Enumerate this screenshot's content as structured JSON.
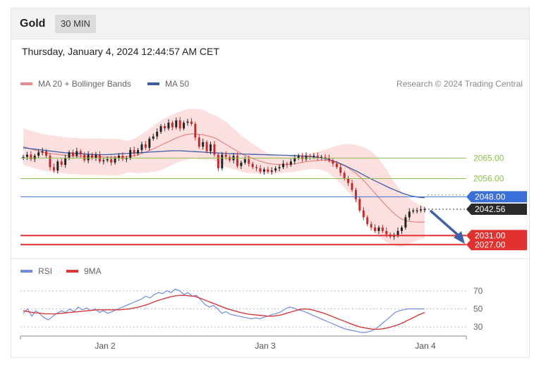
{
  "header": {
    "symbol": "Gold",
    "timeframe": "30 MIN"
  },
  "datetime": "Thursday, January 4, 2024 12:44:57 AM CET",
  "credit": "Research © 2024 Trading Central",
  "colors": {
    "bull": "#222222",
    "bear": "#c42a2a",
    "ma20": "#e88a8a",
    "ma50": "#3b5ea8",
    "band": "#fbd5d5",
    "support_green": "#8bbf4f",
    "resistance_blue": "#3b6fd8",
    "target_red": "#e03030",
    "rsi": "#6f8be0",
    "rsi_ma": "#d83a3a",
    "arrow": "#3c5fa6"
  },
  "chart_data": [
    {
      "type": "candlestick",
      "legend": [
        {
          "label": "MA 20 + Bollinger Bands",
          "color": "#e88a8a"
        },
        {
          "label": "MA 50",
          "color": "#3b5ea8"
        }
      ],
      "x_ticks": [
        "Jan 2",
        "Jan 3",
        "Jan 4"
      ],
      "ylim": [
        2024,
        2092
      ],
      "levels": [
        {
          "value": 2065.0,
          "label": "2065.00",
          "kind": "green"
        },
        {
          "value": 2056.0,
          "label": "2056.00",
          "kind": "green"
        },
        {
          "value": 2048.0,
          "label": "2048.00",
          "kind": "blue"
        },
        {
          "value": 2042.56,
          "label": "2042.56",
          "kind": "last"
        },
        {
          "value": 2031.0,
          "label": "2031.00",
          "kind": "red"
        },
        {
          "value": 2027.0,
          "label": "2027.00",
          "kind": "red"
        }
      ],
      "closes": [
        2065.5,
        2066.5,
        2064.5,
        2066.0,
        2067.5,
        2068.0,
        2066.0,
        2061.0,
        2059.5,
        2063.5,
        2062.0,
        2065.0,
        2067.5,
        2066.0,
        2068.0,
        2066.5,
        2064.0,
        2066.5,
        2065.0,
        2066.5,
        2063.5,
        2064.0,
        2064.5,
        2063.0,
        2065.0,
        2066.0,
        2064.5,
        2065.0,
        2068.5,
        2067.0,
        2068.5,
        2071.0,
        2069.5,
        2073.5,
        2074.5,
        2076.5,
        2079.0,
        2078.0,
        2080.5,
        2078.5,
        2081.5,
        2078.0,
        2080.5,
        2081.0,
        2080.0,
        2074.0,
        2070.0,
        2072.0,
        2068.0,
        2071.0,
        2066.5,
        2060.5,
        2066.5,
        2065.5,
        2064.0,
        2066.0,
        2061.5,
        2063.0,
        2064.5,
        2062.5,
        2061.0,
        2060.5,
        2059.0,
        2060.0,
        2059.0,
        2059.5,
        2060.5,
        2061.0,
        2062.5,
        2062.0,
        2063.5,
        2065.0,
        2066.0,
        2064.5,
        2066.0,
        2065.5,
        2066.0,
        2065.0,
        2065.5,
        2065.0,
        2064.0,
        2062.5,
        2061.0,
        2058.5,
        2056.0,
        2054.0,
        2051.0,
        2047.0,
        2042.0,
        2039.0,
        2036.0,
        2034.5,
        2033.0,
        2034.5,
        2033.0,
        2031.5,
        2030.5,
        2031.0,
        2033.0,
        2034.5,
        2039.0,
        2041.5,
        2042.0,
        2042.0,
        2042.5,
        2042.56
      ],
      "ma20": [
        2070,
        2069.5,
        2069,
        2068.5,
        2068,
        2067.5,
        2067.3,
        2067,
        2066.8,
        2066.6,
        2066.4,
        2066.2,
        2066,
        2065.9,
        2065.8,
        2065.7,
        2065.6,
        2065.6,
        2065.6,
        2065.6,
        2065.5,
        2065.5,
        2065.4,
        2065.4,
        2065.4,
        2065.4,
        2065.5,
        2065.6,
        2065.8,
        2066,
        2066.4,
        2067,
        2067.6,
        2068.3,
        2069,
        2069.8,
        2070.6,
        2071.4,
        2072.2,
        2073,
        2073.8,
        2074.4,
        2075,
        2075.4,
        2075.6,
        2075.6,
        2075.4,
        2075.2,
        2074.8,
        2074.4,
        2073.8,
        2073,
        2072,
        2071,
        2070,
        2069,
        2068,
        2067,
        2066.2,
        2065.4,
        2064.8,
        2064.2,
        2063.6,
        2063.1,
        2062.7,
        2062.4,
        2062.2,
        2062.1,
        2062.1,
        2062.2,
        2062.3,
        2062.5,
        2062.8,
        2063.1,
        2063.4,
        2063.6,
        2063.8,
        2063.9,
        2064,
        2064,
        2063.8,
        2063.4,
        2062.9,
        2062.3,
        2061.6,
        2060.7,
        2059.6,
        2058.3,
        2056.8,
        2055.2,
        2053.4,
        2051.5,
        2049.6,
        2047.7,
        2045.8,
        2044,
        2042.3,
        2040.7,
        2039.3,
        2038.2,
        2037.6,
        2037.2,
        2037.0,
        2036.9,
        2036.9,
        2036.9
      ],
      "ma50": [
        2069.5,
        2069.3,
        2069.1,
        2068.9,
        2068.7,
        2068.5,
        2068.3,
        2068.1,
        2067.9,
        2067.7,
        2067.5,
        2067.3,
        2067.2,
        2067.1,
        2067,
        2066.9,
        2066.8,
        2066.7,
        2066.6,
        2066.5,
        2066.5,
        2066.5,
        2066.5,
        2066.6,
        2066.7,
        2066.8,
        2066.9,
        2067,
        2067.1,
        2067.2,
        2067.3,
        2067.4,
        2067.5,
        2067.6,
        2067.7,
        2067.8,
        2067.9,
        2068,
        2068.1,
        2068.2,
        2068.2,
        2068.2,
        2068.1,
        2068,
        2067.9,
        2067.8,
        2067.7,
        2067.6,
        2067.5,
        2067.4,
        2067.3,
        2067.2,
        2067.1,
        2067,
        2066.9,
        2066.9,
        2066.8,
        2066.8,
        2066.7,
        2066.7,
        2066.6,
        2066.6,
        2066.5,
        2066.5,
        2066.4,
        2066.4,
        2066.3,
        2066.3,
        2066.2,
        2066.2,
        2066.1,
        2066.1,
        2066,
        2065.9,
        2065.8,
        2065.7,
        2065.5,
        2065.3,
        2065,
        2064.7,
        2064.3,
        2063.8,
        2063.2,
        2062.5,
        2061.8,
        2061,
        2060.2,
        2059.4,
        2058.5,
        2057.6,
        2056.7,
        2055.8,
        2055,
        2054.2,
        2053.4,
        2052.6,
        2051.8,
        2051.1,
        2050.4,
        2049.7,
        2049.1,
        2048.6,
        2048.2,
        2047.9,
        2047.7,
        2047.6
      ],
      "band_width": [
        8,
        8,
        8,
        8,
        8,
        8,
        8,
        8,
        8,
        8,
        8,
        8,
        8,
        8,
        8,
        8,
        8,
        8,
        8,
        8,
        8,
        8,
        8,
        8,
        8,
        8,
        7.5,
        7,
        7,
        7.5,
        8,
        8.5,
        9,
        9.5,
        10,
        10.5,
        11,
        11,
        11,
        11,
        11,
        11,
        11,
        11,
        11,
        11,
        11,
        11,
        10.5,
        10,
        10,
        10,
        10,
        10,
        9.5,
        9,
        8.5,
        8,
        7.5,
        7,
        6.5,
        6,
        5.5,
        5,
        4.5,
        4.2,
        4,
        3.8,
        3.6,
        3.5,
        3.5,
        3.5,
        3.5,
        3.5,
        3.5,
        3.5,
        3.5,
        3.8,
        4.2,
        4.8,
        5.5,
        6.5,
        7.5,
        8.5,
        9.5,
        10.5,
        11.5,
        12.5,
        13.5,
        14.5,
        15.5,
        16.5,
        17,
        17,
        16.5,
        16,
        15,
        14,
        13,
        12,
        11,
        10,
        9,
        8,
        7.5,
        7
      ]
    },
    {
      "type": "line",
      "legend": [
        {
          "label": "RSI",
          "color": "#6f8be0"
        },
        {
          "label": "9MA",
          "color": "#d83a3a"
        }
      ],
      "ylim": [
        20,
        80
      ],
      "y_ticks": [
        30,
        50,
        70
      ],
      "rsi": [
        45,
        50,
        42,
        48,
        44,
        40,
        38,
        42,
        45,
        48,
        46,
        50,
        47,
        52,
        49,
        51,
        48,
        50,
        46,
        48,
        45,
        47,
        49,
        51,
        53,
        55,
        57,
        59,
        61,
        64,
        62,
        66,
        68,
        67,
        70,
        68,
        72,
        70,
        66,
        68,
        64,
        65,
        60,
        55,
        52,
        54,
        50,
        45,
        47,
        44,
        43,
        42,
        41,
        40,
        39,
        40,
        39,
        41,
        42,
        44,
        45,
        47,
        50,
        52,
        51,
        49,
        48,
        46,
        44,
        42,
        40,
        38,
        36,
        34,
        32,
        30,
        28,
        27,
        26,
        25,
        24,
        24,
        25,
        27,
        30,
        34,
        38,
        42,
        46,
        48,
        49,
        50,
        50,
        50,
        50,
        50
      ],
      "rsi_ma": [
        48,
        47,
        46,
        45.5,
        45,
        44.5,
        44.5,
        44.5,
        45,
        45.5,
        46,
        46.5,
        47,
        47.5,
        48,
        48.5,
        49,
        49,
        49,
        49,
        49,
        49,
        49.5,
        50,
        51,
        52,
        53.5,
        55,
        57,
        59,
        60.5,
        62,
        63.5,
        64.5,
        65,
        65,
        64.5,
        64,
        62.5,
        60.5,
        58.5,
        56.5,
        54.5,
        52.5,
        50.5,
        49,
        47.5,
        46,
        45,
        44,
        43.5,
        43,
        42.5,
        42,
        42,
        42.5,
        43.5,
        45,
        46.5,
        48,
        49.5,
        50,
        49.5,
        48.5,
        47,
        45.5,
        43.5,
        41.5,
        39.5,
        37.5,
        35.5,
        33.5,
        31.5,
        30,
        29,
        28,
        27.5,
        27.5,
        28,
        29,
        30.5,
        32,
        34,
        36.5,
        39,
        41.5,
        44,
        46
      ]
    }
  ]
}
